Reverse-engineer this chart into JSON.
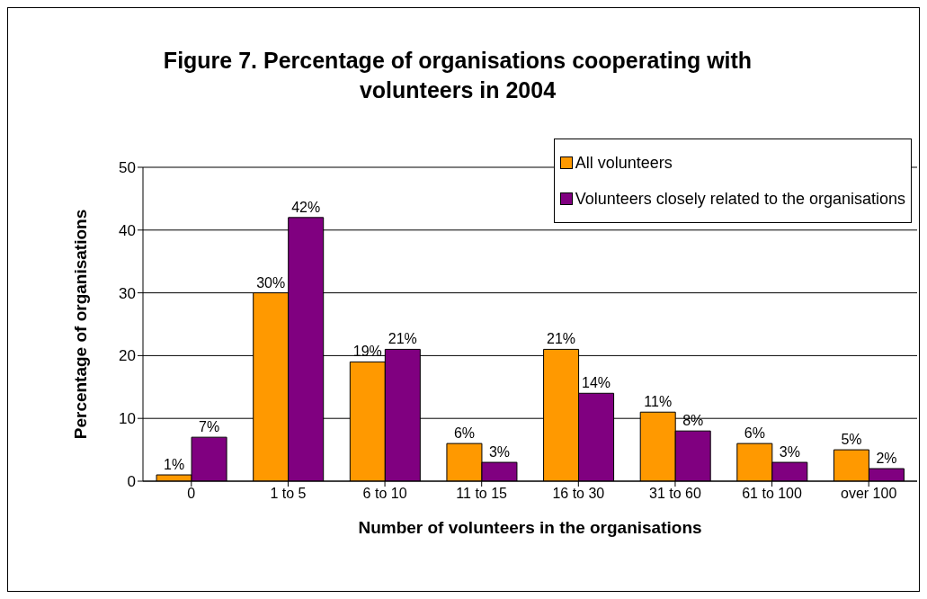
{
  "chart_data": {
    "type": "bar",
    "title": "Figure 7. Percentage of organisations cooperating with volunteers in 2004",
    "xlabel": "Number of volunteers in the organisations",
    "ylabel": "Percentage of organisations",
    "categories": [
      "0",
      "1 to 5",
      "6 to 10",
      "11 to 15",
      "16 to 30",
      "31 to 60",
      "61 to 100",
      "over 100"
    ],
    "series": [
      {
        "name": "All volunteers",
        "color": "#ff9900",
        "values": [
          1,
          30,
          19,
          6,
          21,
          11,
          6,
          5
        ],
        "value_labels": [
          "1%",
          "30%",
          "19%",
          "6%",
          "21%",
          "11%",
          "6%",
          "5%"
        ]
      },
      {
        "name": "Volunteers closely related to the organisations",
        "color": "#800080",
        "values": [
          7,
          42,
          21,
          3,
          14,
          8,
          3,
          2
        ],
        "value_labels": [
          "7%",
          "42%",
          "21%",
          "3%",
          "14%",
          "8%",
          "3%",
          "2%"
        ]
      }
    ],
    "ylim": [
      0,
      50
    ],
    "yticks": [
      0,
      10,
      20,
      30,
      40,
      50
    ],
    "grid": "y",
    "legend": "top right"
  }
}
